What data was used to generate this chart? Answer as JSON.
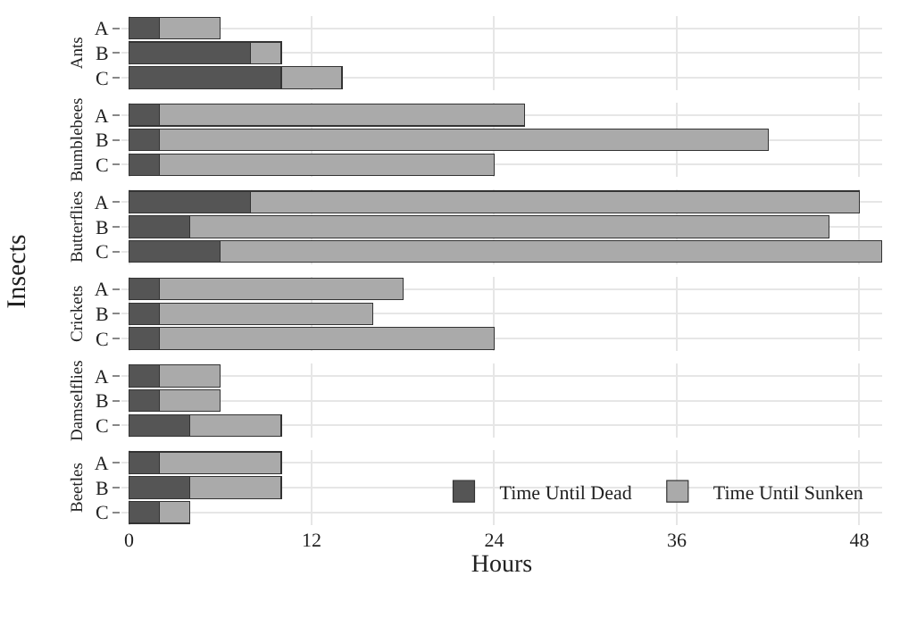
{
  "chart_data": [
    {
      "type": "bar",
      "orientation": "horizontal",
      "stacked": true,
      "ylabel": "Ants",
      "annotations": [
        "Insects"
      ],
      "categories": [
        "A",
        "B",
        "C"
      ],
      "series": [
        {
          "color": "#555555",
          "values": [
            2,
            8,
            10
          ]
        },
        {
          "color": "#aaaaaa",
          "values": [
            4,
            2,
            4
          ]
        }
      ],
      "xlim": [
        -0.5,
        49.5
      ],
      "xticks": [
        0,
        12,
        24,
        36,
        48
      ],
      "grid": true,
      "tick_labels": "y"
    },
    {
      "type": "bar",
      "orientation": "horizontal",
      "stacked": true,
      "ylabel": "Bumblebees",
      "categories": [
        "A",
        "B",
        "C"
      ],
      "series": [
        {
          "color": "#555555",
          "values": [
            2,
            2,
            2
          ]
        },
        {
          "color": "#aaaaaa",
          "values": [
            24,
            40,
            22
          ]
        }
      ],
      "xlim": [
        -0.5,
        49.5
      ],
      "xticks": [
        0,
        12,
        24,
        36,
        48
      ],
      "grid": true,
      "tick_labels": "y"
    },
    {
      "type": "bar",
      "orientation": "horizontal",
      "stacked": true,
      "ylabel": "Butterflies",
      "categories": [
        "A",
        "B",
        "C"
      ],
      "series": [
        {
          "color": "#555555",
          "values": [
            8,
            4,
            6
          ]
        },
        {
          "color": "#aaaaaa",
          "values": [
            40,
            42,
            43.5
          ]
        }
      ],
      "xlim": [
        -0.5,
        49.5
      ],
      "xticks": [
        0,
        12,
        24,
        36,
        48
      ],
      "grid": true,
      "tick_labels": "y"
    },
    {
      "type": "bar",
      "orientation": "horizontal",
      "stacked": true,
      "ylabel": "Crickets",
      "categories": [
        "A",
        "B",
        "C"
      ],
      "series": [
        {
          "color": "#555555",
          "values": [
            2,
            2,
            2
          ]
        },
        {
          "color": "#aaaaaa",
          "values": [
            16,
            14,
            22
          ]
        }
      ],
      "xlim": [
        -0.5,
        49.5
      ],
      "xticks": [
        0,
        12,
        24,
        36,
        48
      ],
      "grid": true,
      "tick_labels": "y"
    },
    {
      "type": "bar",
      "orientation": "horizontal",
      "stacked": true,
      "ylabel": "Damselflies",
      "categories": [
        "A",
        "B",
        "C"
      ],
      "series": [
        {
          "color": "#555555",
          "values": [
            2,
            2,
            4
          ]
        },
        {
          "color": "#aaaaaa",
          "values": [
            4,
            4,
            6
          ]
        }
      ],
      "xlim": [
        -0.5,
        49.5
      ],
      "xticks": [
        0,
        12,
        24,
        36,
        48
      ],
      "grid": true,
      "tick_labels": "y"
    },
    {
      "type": "bar",
      "orientation": "horizontal",
      "stacked": true,
      "ylabel": "Beetles",
      "xlabel": "Hours",
      "legend": "bottom right",
      "categories": [
        "A",
        "B",
        "C"
      ],
      "series": [
        {
          "name": "Time Until Dead",
          "color": "#555555",
          "values": [
            2,
            4,
            2
          ]
        },
        {
          "name": "Time Until Sunken",
          "color": "#aaaaaa",
          "values": [
            8,
            6,
            2
          ]
        }
      ],
      "xlim": [
        -0.5,
        49.5
      ],
      "xticks": [
        0,
        12,
        24,
        36,
        48
      ],
      "grid": true
    }
  ]
}
